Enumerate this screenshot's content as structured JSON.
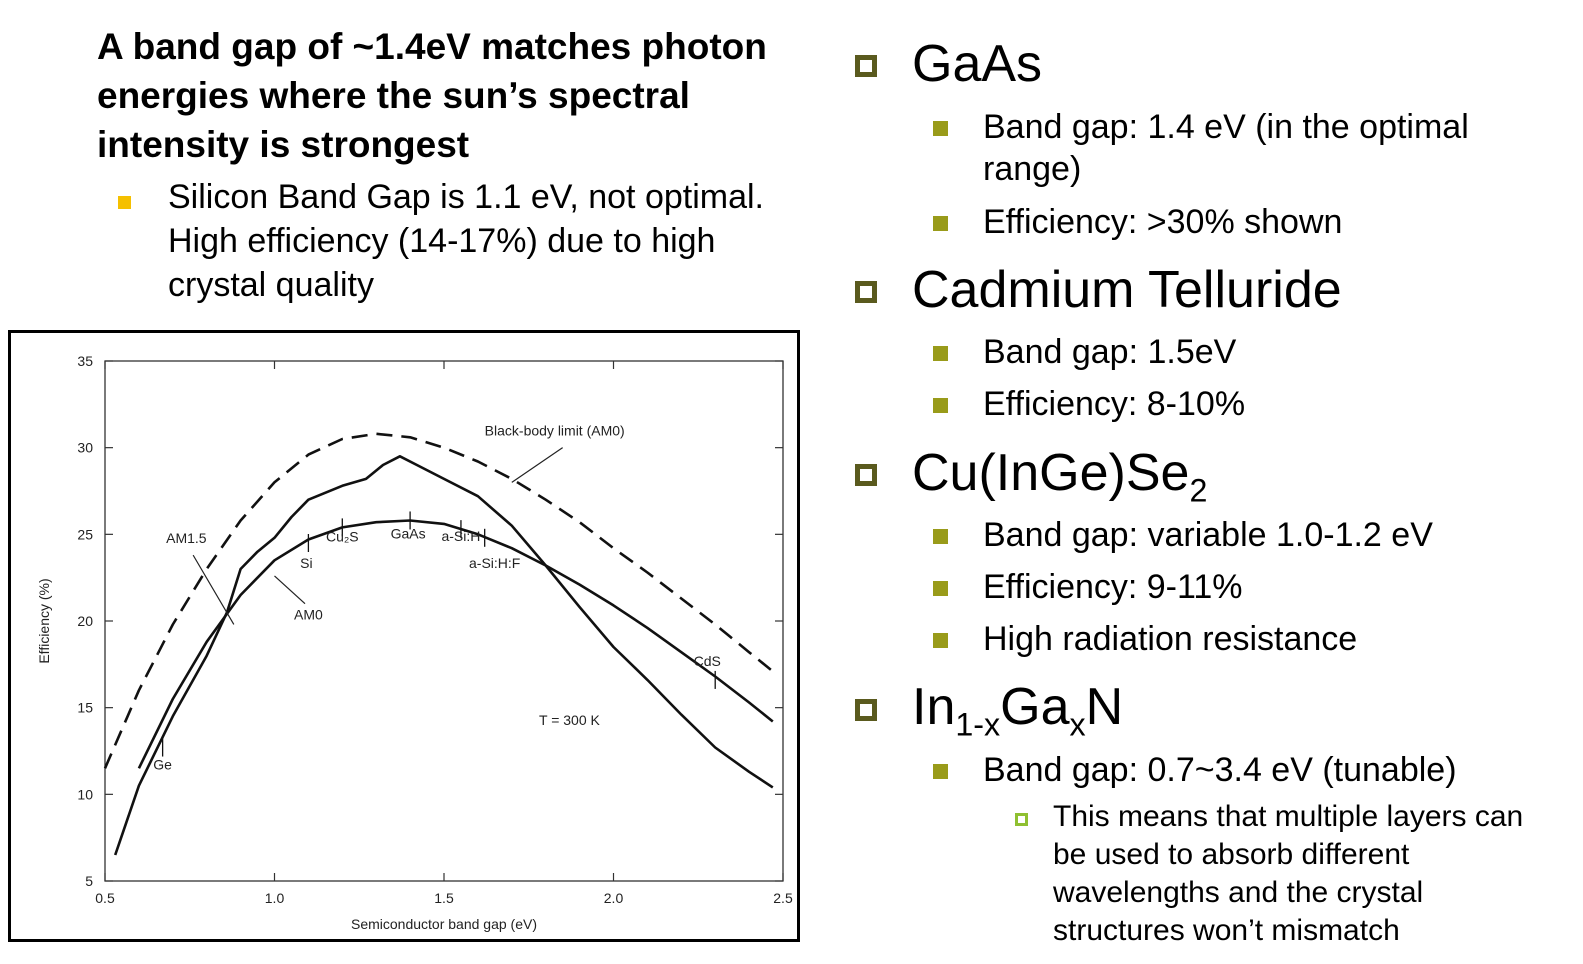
{
  "left": {
    "headline": "A band gap of ~1.4eV matches photon energies where the sun’s spectral intensity is strongest",
    "silicon_note": "Silicon Band Gap is 1.1 eV, not optimal. High efficiency (14-17%) due to high crystal quality"
  },
  "right": {
    "gaas": {
      "title": "GaAs",
      "band_gap": "Band gap: 1.4 eV (in the optimal range)",
      "efficiency": "Efficiency: >30% shown"
    },
    "cdte": {
      "title": "Cadmium Telluride",
      "band_gap": "Band gap: 1.5eV",
      "efficiency": "Efficiency: 8-10%"
    },
    "cigs": {
      "title_main": "Cu(InGe)Se",
      "title_sub": "2",
      "band_gap": "Band gap: variable 1.0-1.2 eV",
      "efficiency": "Efficiency: 9-11%",
      "radiation": "High radiation resistance"
    },
    "ingan": {
      "t1": "In",
      "t1_sub": "1-x",
      "t2": "Ga",
      "t2_sub": "x",
      "t3": "N",
      "band_gap": "Band gap: 0.7~3.4 eV (tunable)",
      "note": "This means that multiple layers can be used to absorb different wavelengths and the crystal structures won’t mismatch"
    }
  },
  "colors": {
    "title_bullet": "#5a5a1e",
    "sub_bullet": "#999b1a",
    "hollow_bullet": "#8fc031",
    "left_bullet": "#f5c000"
  },
  "chart_data": {
    "type": "line",
    "xlabel": "Semiconductor band gap (eV)",
    "ylabel": "Efficiency (%)",
    "xlim": [
      0.5,
      2.5
    ],
    "ylim": [
      5,
      35
    ],
    "x_ticks": [
      "0.5",
      "1.0",
      "1.5",
      "2.0",
      "2.5"
    ],
    "y_ticks": [
      "5",
      "10",
      "15",
      "20",
      "25",
      "30",
      "35"
    ],
    "series": [
      {
        "name": "Black-body limit (AM0)",
        "style": "dashed",
        "x": [
          0.5,
          0.6,
          0.7,
          0.8,
          0.9,
          1.0,
          1.1,
          1.2,
          1.3,
          1.4,
          1.5,
          1.6,
          1.7,
          1.8,
          1.9,
          2.0,
          2.1,
          2.2,
          2.3,
          2.4,
          2.47
        ],
        "y": [
          11.5,
          16.0,
          19.8,
          23.0,
          25.8,
          28.0,
          29.6,
          30.5,
          30.8,
          30.6,
          30.0,
          29.2,
          28.2,
          27.0,
          25.7,
          24.2,
          22.8,
          21.3,
          19.8,
          18.2,
          17.1
        ]
      },
      {
        "name": "AM1.5",
        "style": "solid",
        "x": [
          0.53,
          0.6,
          0.7,
          0.8,
          0.86,
          0.9,
          0.95,
          1.0,
          1.05,
          1.1,
          1.2,
          1.27,
          1.32,
          1.37,
          1.42,
          1.5,
          1.6,
          1.7,
          1.8,
          1.9,
          2.0,
          2.1,
          2.2,
          2.3,
          2.4,
          2.47
        ],
        "y": [
          6.5,
          10.5,
          14.5,
          18.0,
          20.5,
          23.0,
          24.0,
          24.8,
          26.0,
          27.0,
          27.8,
          28.2,
          29.0,
          29.5,
          29.0,
          28.2,
          27.2,
          25.5,
          23.2,
          20.8,
          18.5,
          16.6,
          14.6,
          12.7,
          11.3,
          10.4
        ]
      },
      {
        "name": "AM0",
        "style": "solid",
        "x": [
          0.6,
          0.7,
          0.8,
          0.9,
          1.0,
          1.1,
          1.2,
          1.3,
          1.4,
          1.5,
          1.6,
          1.7,
          1.8,
          1.9,
          2.0,
          2.1,
          2.2,
          2.3,
          2.4,
          2.47
        ],
        "y": [
          11.5,
          15.5,
          18.8,
          21.5,
          23.5,
          24.7,
          25.4,
          25.7,
          25.8,
          25.6,
          25.0,
          24.2,
          23.2,
          22.1,
          20.9,
          19.6,
          18.2,
          16.8,
          15.3,
          14.2
        ]
      }
    ],
    "markers": [
      {
        "label": "Ge",
        "x": 0.67,
        "y": 12.7
      },
      {
        "label": "Si",
        "x": 1.1,
        "y": 24.5
      },
      {
        "label": "Cu₂S",
        "x": 1.2,
        "y": 25.4
      },
      {
        "label": "GaAs",
        "x": 1.4,
        "y": 25.8
      },
      {
        "label": "a-Si:H",
        "x": 1.55,
        "y": 25.3
      },
      {
        "label": "a-Si:H:F",
        "x": 1.62,
        "y": 24.8
      },
      {
        "label": "CdS",
        "x": 2.3,
        "y": 16.6
      }
    ],
    "annotations": [
      {
        "text": "Black-body limit (AM0)"
      },
      {
        "text": "AM1.5"
      },
      {
        "text": "AM0"
      },
      {
        "text": "T = 300 K"
      }
    ]
  }
}
